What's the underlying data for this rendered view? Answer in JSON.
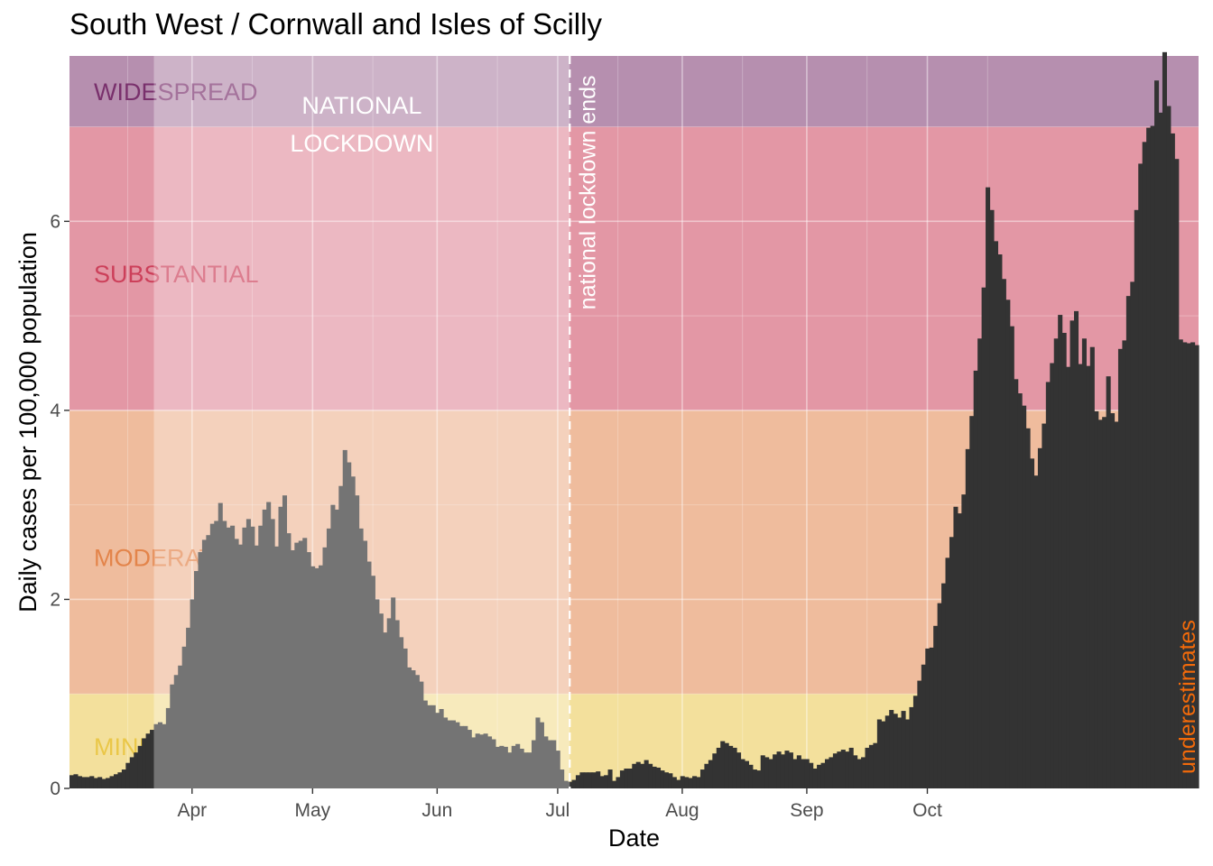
{
  "chart_data": {
    "type": "bar",
    "title": "South West / Cornwall and Isles of Scilly",
    "xlabel": "Date",
    "ylabel": "Daily cases per 100,000 population",
    "x_ticks": [
      "Apr",
      "May",
      "Jun",
      "Jul",
      "Aug",
      "Sep",
      "Oct"
    ],
    "y_ticks": [
      "0",
      "2",
      "4",
      "6"
    ],
    "ylim": [
      0,
      7.75
    ],
    "grid": true,
    "bands": [
      {
        "label": "MINIMAL",
        "from": 0,
        "to": 1,
        "color": "#e8c23a"
      },
      {
        "label": "MODERATE",
        "from": 1,
        "to": 4,
        "color": "#e07a3c"
      },
      {
        "label": "SUBSTANTIAL",
        "from": 4,
        "to": 7,
        "color": "#c8304c"
      },
      {
        "label": "WIDESPREAD",
        "from": 7,
        "to": 7.75,
        "color": "#6e2060"
      }
    ],
    "annotations": {
      "lockdown": "NATIONAL\nLOCKDOWN",
      "lockdown_ends": "national lockdown ends",
      "underestimates": "underestimates"
    },
    "colors": {
      "bars": "#333333",
      "lockdown_overlay": "#ffffff",
      "underestimates": "#f26a0a",
      "band_label_text": "#ffffff"
    },
    "x_first_date": "2020-03-02",
    "series": [
      {
        "values": [
          0.14,
          0.15,
          0.13,
          0.12,
          0.12,
          0.13,
          0.11,
          0.12,
          0.1,
          0.11,
          0.13,
          0.15,
          0.17,
          0.2,
          0.27,
          0.33,
          0.38,
          0.45,
          0.53,
          0.58,
          0.62,
          0.68,
          0.7,
          0.68,
          0.85,
          1.1,
          1.2,
          1.3,
          1.5,
          1.7,
          2.0,
          2.3,
          2.5,
          2.63,
          2.68,
          2.8,
          2.83,
          3.02,
          2.83,
          2.76,
          2.78,
          2.64,
          2.58,
          2.76,
          2.85,
          2.77,
          2.57,
          2.78,
          2.95,
          3.03,
          2.85,
          2.56,
          2.98,
          3.1,
          2.7,
          2.52,
          2.6,
          2.62,
          2.65,
          2.5,
          2.35,
          2.33,
          2.36,
          2.55,
          2.75,
          3.0,
          2.95,
          3.2,
          3.58,
          3.45,
          3.3,
          3.1,
          2.75,
          2.62,
          2.4,
          2.25,
          2.0,
          1.85,
          1.65,
          1.8,
          2.02,
          1.78,
          1.6,
          1.48,
          1.28,
          1.25,
          1.2,
          1.13,
          0.93,
          0.88,
          0.88,
          0.8,
          0.84,
          0.75,
          0.72,
          0.72,
          0.7,
          0.66,
          0.66,
          0.62,
          0.54,
          0.58,
          0.57,
          0.58,
          0.55,
          0.52,
          0.44,
          0.45,
          0.44,
          0.38,
          0.45,
          0.47,
          0.42,
          0.38,
          0.38,
          0.51,
          0.75,
          0.7,
          0.55,
          0.51,
          0.51,
          0.4,
          0.2,
          0.08,
          0.07,
          0.09,
          0.14,
          0.17,
          0.17,
          0.17,
          0.17,
          0.18,
          0.13,
          0.14,
          0.2,
          0.08,
          0.12,
          0.19,
          0.21,
          0.21,
          0.26,
          0.28,
          0.26,
          0.3,
          0.26,
          0.23,
          0.22,
          0.19,
          0.17,
          0.16,
          0.12,
          0.09,
          0.13,
          0.12,
          0.11,
          0.13,
          0.12,
          0.2,
          0.26,
          0.3,
          0.37,
          0.43,
          0.5,
          0.48,
          0.45,
          0.43,
          0.38,
          0.31,
          0.29,
          0.25,
          0.2,
          0.19,
          0.35,
          0.33,
          0.31,
          0.36,
          0.39,
          0.36,
          0.4,
          0.38,
          0.31,
          0.35,
          0.31,
          0.31,
          0.27,
          0.21,
          0.25,
          0.27,
          0.31,
          0.33,
          0.37,
          0.39,
          0.41,
          0.39,
          0.43,
          0.35,
          0.31,
          0.33,
          0.43,
          0.46,
          0.48,
          0.73,
          0.71,
          0.77,
          0.83,
          0.79,
          0.75,
          0.82,
          0.73,
          0.86,
          0.98,
          1.14,
          1.31,
          1.48,
          1.49,
          1.72,
          1.96,
          2.17,
          2.44,
          2.66,
          2.98,
          2.91,
          3.11,
          3.59,
          3.94,
          4.42,
          4.76,
          5.3,
          6.36,
          6.12,
          5.79,
          5.65,
          5.39,
          5.17,
          4.89,
          4.33,
          4.18,
          4.05,
          3.81,
          3.49,
          3.31,
          3.6,
          3.86,
          4.3,
          4.5,
          4.76,
          5.01,
          4.82,
          4.46,
          4.95,
          5.05,
          4.49,
          4.76,
          4.47,
          4.67,
          3.99,
          3.9,
          3.93,
          4.36,
          3.97,
          3.88,
          4.65,
          4.74,
          5.21,
          5.36,
          6.12,
          6.61,
          6.84,
          6.99,
          7.01,
          7.49,
          7.15,
          7.79,
          7.22,
          6.93,
          6.66,
          4.75,
          4.72,
          4.71,
          4.72,
          4.69
        ]
      }
    ]
  }
}
